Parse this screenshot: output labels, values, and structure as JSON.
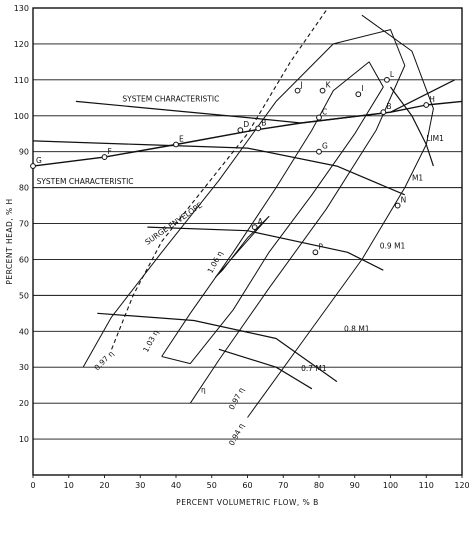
{
  "chart_data": {
    "type": "line",
    "xlabel": "PERCENT VOLUMETRIC FLOW, % B",
    "ylabel": "PERCENT HEAD, % H",
    "xlim": [
      0,
      120
    ],
    "ylim": [
      0,
      130
    ],
    "xticks": [
      "0",
      "10",
      "20",
      "30",
      "40",
      "50",
      "60",
      "70",
      "80",
      "90",
      "100",
      "110",
      "120"
    ],
    "yticks": [
      "10",
      "20",
      "30",
      "40",
      "50",
      "60",
      "70",
      "80",
      "90",
      "100",
      "110",
      "120",
      "130"
    ],
    "grid": "horizontal",
    "system_characteristic_line": [
      [
        0,
        86
      ],
      [
        20,
        88.5
      ],
      [
        40,
        92
      ],
      [
        62,
        96
      ],
      [
        75,
        98
      ],
      [
        100,
        101
      ],
      [
        110,
        103
      ],
      [
        120,
        104
      ]
    ],
    "system_characteristic_curve": [
      [
        12,
        104
      ],
      [
        60,
        99.5
      ],
      [
        75,
        98
      ],
      [
        100,
        101
      ],
      [
        118,
        110
      ]
    ],
    "surge_envelope": [
      [
        22,
        35
      ],
      [
        28,
        50
      ],
      [
        36,
        65
      ],
      [
        48,
        80
      ],
      [
        60,
        95
      ],
      [
        72,
        115
      ],
      [
        86,
        135
      ]
    ],
    "speed_curves": [
      {
        "label": "M1",
        "points": [
          [
            0,
            93
          ],
          [
            30,
            92
          ],
          [
            60,
            91
          ],
          [
            85,
            86
          ],
          [
            104,
            78
          ]
        ]
      },
      {
        "label": "0.9 M1",
        "points": [
          [
            32,
            69
          ],
          [
            60,
            68
          ],
          [
            88,
            62
          ],
          [
            98,
            57
          ]
        ]
      },
      {
        "label": "0.8 M1",
        "points": [
          [
            18,
            45
          ],
          [
            45,
            43
          ],
          [
            68,
            38
          ],
          [
            85,
            26
          ]
        ]
      },
      {
        "label": "0.7 M1",
        "points": [
          [
            52,
            35
          ],
          [
            68,
            30
          ],
          [
            78,
            24
          ]
        ]
      },
      {
        "label": "LIM1",
        "points": [
          [
            100,
            108
          ],
          [
            106,
            100
          ],
          [
            110,
            92
          ],
          [
            112,
            86
          ]
        ]
      }
    ],
    "efficiency_contours": [
      {
        "label": "1.06 η",
        "points": [
          [
            51,
            55
          ],
          [
            58,
            63
          ],
          [
            66,
            72
          ],
          [
            60,
            66
          ],
          [
            53,
            57
          ],
          [
            51,
            55
          ]
        ]
      },
      {
        "label": "1.03 η",
        "points": [
          [
            36,
            33
          ],
          [
            44,
            45
          ],
          [
            56,
            62
          ],
          [
            68,
            80
          ],
          [
            78,
            96
          ],
          [
            84,
            107
          ],
          [
            94,
            115
          ],
          [
            98,
            108
          ],
          [
            90,
            95
          ],
          [
            78,
            78
          ],
          [
            66,
            62
          ],
          [
            56,
            46
          ],
          [
            44,
            31
          ],
          [
            36,
            33
          ]
        ]
      },
      {
        "label": "0.97 η",
        "points": [
          [
            14,
            30
          ],
          [
            22,
            44
          ],
          [
            36,
            62
          ],
          [
            52,
            82
          ],
          [
            68,
            104
          ],
          [
            84,
            120
          ],
          [
            100,
            124
          ],
          [
            104,
            114
          ],
          [
            96,
            96
          ],
          [
            82,
            74
          ],
          [
            66,
            52
          ],
          [
            52,
            32
          ],
          [
            44,
            20
          ]
        ]
      },
      {
        "label": "0.94 η",
        "points": [
          [
            60,
            16
          ],
          [
            76,
            38
          ],
          [
            92,
            60
          ],
          [
            104,
            80
          ],
          [
            110,
            92
          ],
          [
            112,
            102
          ],
          [
            106,
            118
          ],
          [
            92,
            128
          ]
        ]
      }
    ],
    "points": [
      {
        "label": "G",
        "x": 0,
        "y": 86
      },
      {
        "label": "F",
        "x": 20,
        "y": 88.5
      },
      {
        "label": "E",
        "x": 40,
        "y": 92
      },
      {
        "label": "D",
        "x": 58,
        "y": 96
      },
      {
        "label": "B",
        "x": 63,
        "y": 96.5
      },
      {
        "label": "C",
        "x": 80,
        "y": 99.5
      },
      {
        "label": "J",
        "x": 74,
        "y": 107
      },
      {
        "label": "K",
        "x": 81,
        "y": 107
      },
      {
        "label": "L",
        "x": 99,
        "y": 110
      },
      {
        "label": "I",
        "x": 91,
        "y": 106
      },
      {
        "label": "B",
        "x": 98,
        "y": 101
      },
      {
        "label": "H",
        "x": 110,
        "y": 103
      },
      {
        "label": "G",
        "x": 80,
        "y": 90
      },
      {
        "label": "A",
        "x": 62,
        "y": 69
      },
      {
        "label": "N",
        "x": 102,
        "y": 75
      },
      {
        "label": "P",
        "x": 79,
        "y": 62
      }
    ],
    "annotations": [
      {
        "text": "SYSTEM CHARACTERISTIC",
        "x": 25,
        "y": 104
      },
      {
        "text": "SYSTEM CHARACTERISTIC",
        "x": 1,
        "y": 81
      },
      {
        "text": "SURGE ENVELOPE",
        "x": 32,
        "y": 64,
        "angle": -35
      },
      {
        "text": "1.06 η",
        "x": 50,
        "y": 56,
        "angle": -62
      },
      {
        "text": "1.03 η",
        "x": 32,
        "y": 34,
        "angle": -62
      },
      {
        "text": "0.97 η",
        "x": 18,
        "y": 29,
        "angle": -45
      },
      {
        "text": "0.97 η",
        "x": 56,
        "y": 18,
        "angle": -62
      },
      {
        "text": "0.94 η",
        "x": 56,
        "y": 8,
        "angle": -62
      },
      {
        "text": "M1",
        "x": 106,
        "y": 82
      },
      {
        "text": "0.9 M1",
        "x": 97,
        "y": 63
      },
      {
        "text": "0.8 M1",
        "x": 87,
        "y": 40
      },
      {
        "text": "0.7 M1",
        "x": 75,
        "y": 29
      },
      {
        "text": "LIM1",
        "x": 110,
        "y": 93
      },
      {
        "text": "η",
        "x": 47,
        "y": 23
      }
    ]
  }
}
